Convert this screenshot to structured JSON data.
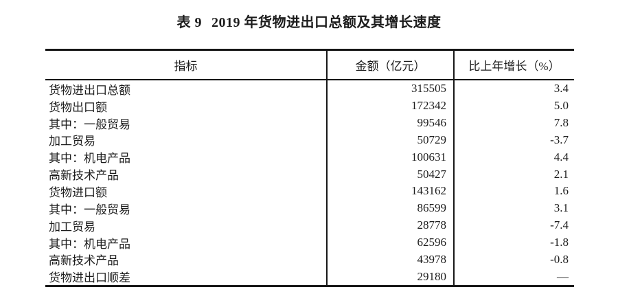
{
  "title": {
    "label": "表 9",
    "text": "2019 年货物进出口总额及其增长速度"
  },
  "table": {
    "headers": [
      "指标",
      "金额（亿元）",
      "比上年增长（%）"
    ],
    "rows": [
      {
        "indicator": "货物进出口总额",
        "indent": 0,
        "amount": "315505",
        "growth": "3.4"
      },
      {
        "indicator": "货物出口额",
        "indent": 1,
        "amount": "172342",
        "growth": "5.0"
      },
      {
        "indicator": "其中：一般贸易",
        "indent": 2,
        "amount": "99546",
        "growth": "7.8"
      },
      {
        "indicator": "加工贸易",
        "indent": 3,
        "amount": "50729",
        "growth": "-3.7"
      },
      {
        "indicator": "其中：机电产品",
        "indent": 2,
        "amount": "100631",
        "growth": "4.4"
      },
      {
        "indicator": "高新技术产品",
        "indent": 3,
        "amount": "50427",
        "growth": "2.1"
      },
      {
        "indicator": "货物进口额",
        "indent": 1,
        "amount": "143162",
        "growth": "1.6"
      },
      {
        "indicator": "其中：一般贸易",
        "indent": 2,
        "amount": "86599",
        "growth": "3.1"
      },
      {
        "indicator": "加工贸易",
        "indent": 3,
        "amount": "28778",
        "growth": "-7.4"
      },
      {
        "indicator": "其中：机电产品",
        "indent": 2,
        "amount": "62596",
        "growth": "-1.8"
      },
      {
        "indicator": "高新技术产品",
        "indent": 3,
        "amount": "43978",
        "growth": "-0.8"
      },
      {
        "indicator": "货物进出口顺差",
        "indent": 0,
        "amount": "29180",
        "growth": "—"
      }
    ]
  },
  "colors": {
    "text": "#1c1c1c",
    "border": "#161616",
    "background": "#ffffff"
  }
}
